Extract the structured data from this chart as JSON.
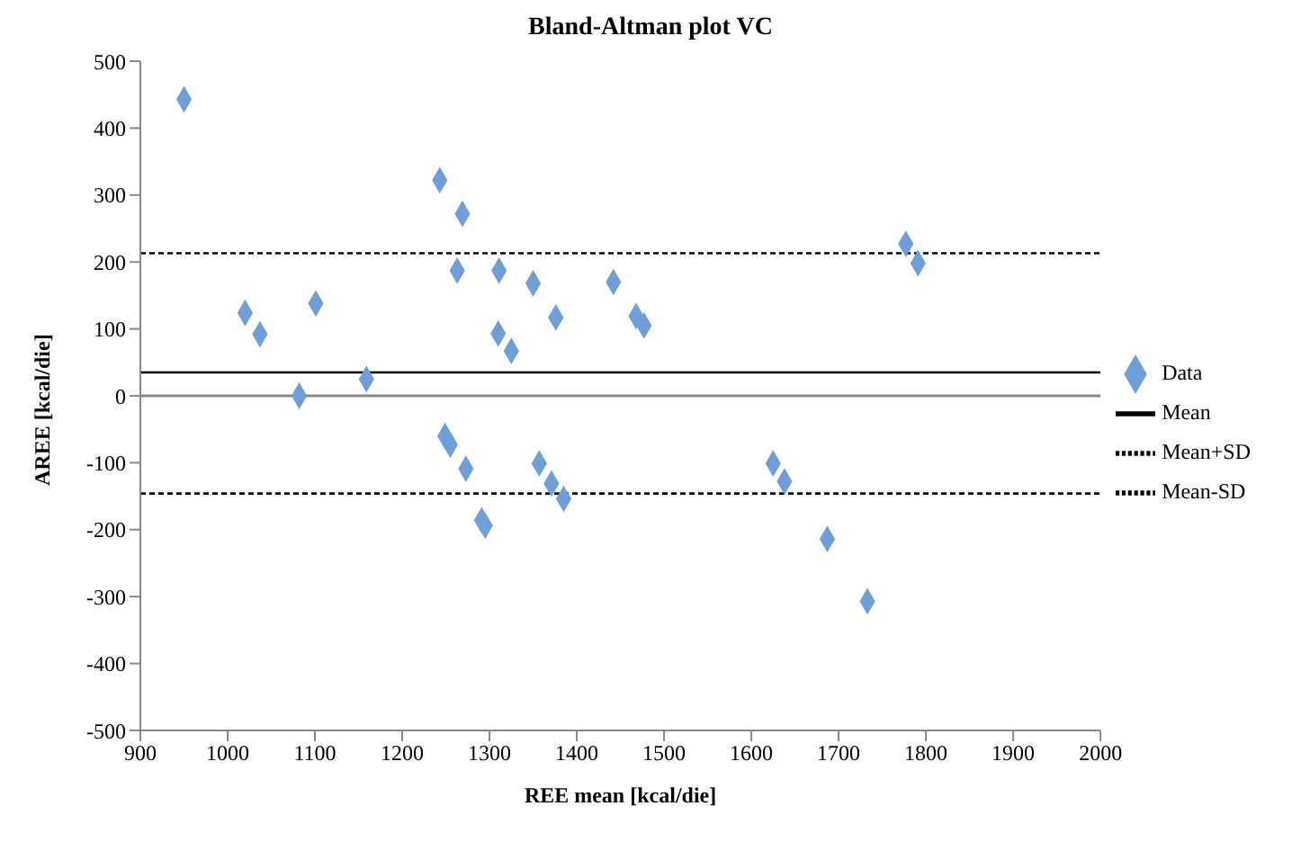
{
  "chart_data": {
    "type": "scatter",
    "title": "Bland-Altman plot VC",
    "xlabel": "REE mean [kcal/die]",
    "ylabel": "AREE [kcal/die]",
    "xlim": [
      900,
      2000
    ],
    "xticks": [
      900,
      1000,
      1100,
      1200,
      1300,
      1400,
      1500,
      1600,
      1700,
      1800,
      1900,
      2000
    ],
    "ylim": [
      -500,
      500
    ],
    "yticks": [
      -500,
      -400,
      -300,
      -200,
      -100,
      0,
      100,
      200,
      300,
      400,
      500
    ],
    "legend": "right",
    "series": [
      {
        "name": "Data",
        "marker": "diamond",
        "color": "#6f9fd8",
        "x": [
          950,
          1020,
          1037,
          1082,
          1101,
          1159,
          1243,
          1269,
          1263,
          1311,
          1310,
          1325,
          1350,
          1376,
          1442,
          1468,
          1477,
          1249,
          1255,
          1273,
          1291,
          1295,
          1357,
          1371,
          1385,
          1777,
          1791,
          1625,
          1638,
          1687,
          1733
        ],
        "values": [
          443,
          124,
          92,
          0,
          138,
          25,
          322,
          272,
          187,
          187,
          93,
          67,
          168,
          117,
          170,
          119,
          105,
          -60,
          -73,
          -109,
          -186,
          -194,
          -101,
          -131,
          -154,
          227,
          198,
          -101,
          -128,
          -214,
          -307
        ]
      },
      {
        "name": "Mean",
        "type": "line",
        "marker": "none",
        "line_style": "solid",
        "color": "#000000",
        "x": [
          900,
          2000
        ],
        "values": [
          35,
          35
        ]
      },
      {
        "name": "Mean+SD",
        "type": "line",
        "marker": "none",
        "line_style": "dashed",
        "color": "#000000",
        "x": [
          900,
          2000
        ],
        "values": [
          213,
          213
        ]
      },
      {
        "name": "Mean-SD",
        "type": "line",
        "marker": "none",
        "line_style": "dashed",
        "color": "#000000",
        "x": [
          900,
          2000
        ],
        "values": [
          -146,
          -146
        ]
      }
    ]
  }
}
